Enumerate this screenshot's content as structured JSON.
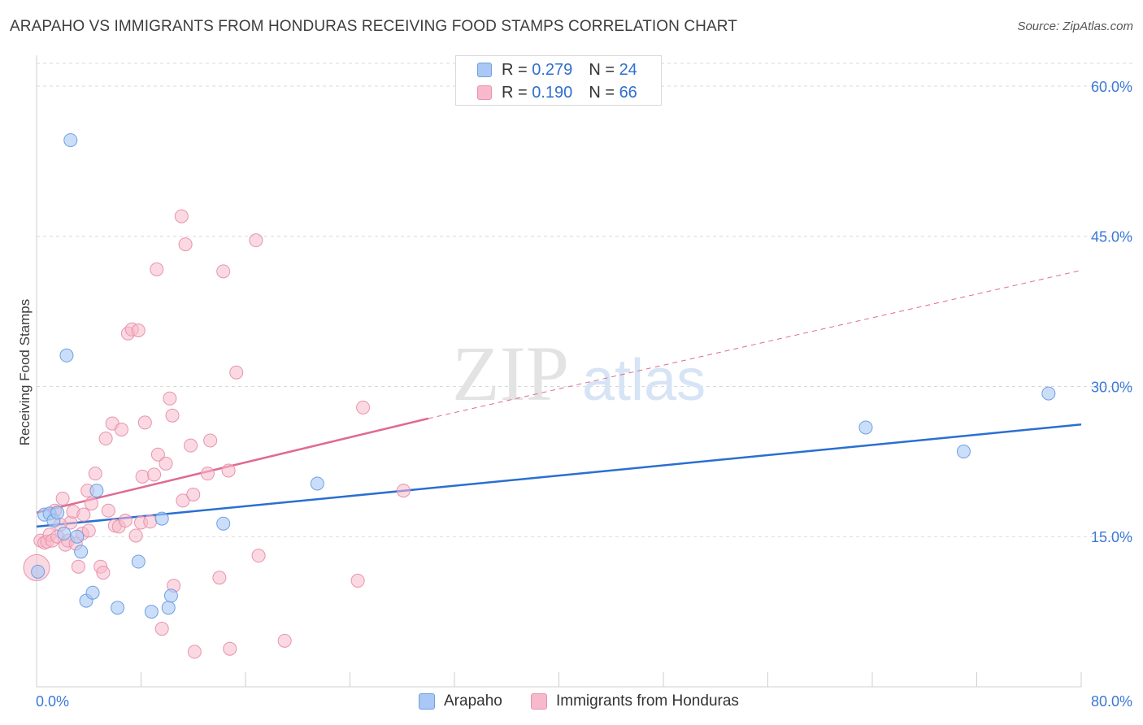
{
  "header": {
    "title": "ARAPAHO VS IMMIGRANTS FROM HONDURAS RECEIVING FOOD STAMPS CORRELATION CHART",
    "source": "Source: ZipAtlas.com"
  },
  "watermark": {
    "zip": "ZIP",
    "atlas": "atlas"
  },
  "stats_legend": {
    "rows": [
      {
        "r_label": "R =",
        "r_value": "0.279",
        "n_label": "N =",
        "n_value": "24",
        "color": "#a9c8f5"
      },
      {
        "r_label": "R =",
        "r_value": "0.190",
        "n_label": "N =",
        "n_value": "66",
        "color": "#f7b9cb"
      }
    ]
  },
  "colors": {
    "blue_fill": "#a9c8f5",
    "blue_stroke": "#6f9fe0",
    "blue_line": "#2a6fd0",
    "pink_fill": "#f7b9cb",
    "pink_stroke": "#e893ad",
    "pink_line": "#e06a93",
    "axis_label": "#3b78d6",
    "grid": "#d9d9d9"
  },
  "chart_data": {
    "type": "scatter",
    "title": "ARAPAHO VS IMMIGRANTS FROM HONDURAS RECEIVING FOOD STAMPS CORRELATION CHART",
    "xlabel": "",
    "ylabel": "Receiving Food Stamps",
    "xlim": [
      0,
      80
    ],
    "ylim": [
      0,
      60
    ],
    "x_tick_labels": [
      "0.0%",
      "80.0%"
    ],
    "y_ticks": [
      15,
      30,
      45,
      60
    ],
    "y_tick_labels": [
      "15.0%",
      "30.0%",
      "45.0%",
      "60.0%"
    ],
    "grid": true,
    "legend_position": "bottom",
    "series": [
      {
        "name": "Arapaho",
        "color": "blue",
        "points": [
          [
            0.1,
            11.5
          ],
          [
            0.6,
            17.2
          ],
          [
            1.0,
            17.3
          ],
          [
            1.3,
            16.6
          ],
          [
            1.6,
            17.4
          ],
          [
            2.1,
            15.3
          ],
          [
            2.3,
            33.1
          ],
          [
            2.6,
            54.6
          ],
          [
            3.1,
            15.0
          ],
          [
            3.4,
            13.5
          ],
          [
            3.8,
            8.6
          ],
          [
            4.3,
            9.4
          ],
          [
            4.6,
            19.6
          ],
          [
            6.2,
            7.9
          ],
          [
            7.8,
            12.5
          ],
          [
            8.8,
            7.5
          ],
          [
            9.6,
            16.8
          ],
          [
            10.1,
            7.9
          ],
          [
            10.3,
            9.1
          ],
          [
            14.3,
            16.3
          ],
          [
            21.5,
            20.3
          ],
          [
            63.5,
            25.9
          ],
          [
            71.0,
            23.5
          ],
          [
            77.5,
            29.3
          ]
        ],
        "trend": [
          [
            0,
            16.0
          ],
          [
            80,
            26.2
          ]
        ]
      },
      {
        "name": "Immigrants from Honduras",
        "color": "pink",
        "points": [
          [
            0.0,
            11.9
          ],
          [
            0.3,
            14.6
          ],
          [
            0.6,
            14.4
          ],
          [
            0.8,
            14.5
          ],
          [
            1.0,
            15.2
          ],
          [
            1.2,
            14.6
          ],
          [
            1.4,
            17.6
          ],
          [
            1.6,
            15.0
          ],
          [
            2.0,
            18.8
          ],
          [
            2.2,
            14.2
          ],
          [
            2.4,
            14.6
          ],
          [
            2.6,
            16.4
          ],
          [
            2.8,
            17.5
          ],
          [
            3.0,
            14.3
          ],
          [
            3.2,
            12.0
          ],
          [
            3.5,
            15.3
          ],
          [
            3.6,
            17.2
          ],
          [
            3.9,
            19.6
          ],
          [
            4.0,
            15.6
          ],
          [
            4.2,
            18.3
          ],
          [
            4.5,
            21.3
          ],
          [
            4.9,
            12.0
          ],
          [
            5.1,
            11.4
          ],
          [
            5.3,
            24.8
          ],
          [
            5.5,
            17.6
          ],
          [
            5.8,
            26.3
          ],
          [
            6.0,
            16.1
          ],
          [
            6.3,
            16.0
          ],
          [
            6.5,
            25.7
          ],
          [
            6.8,
            16.6
          ],
          [
            7.0,
            35.3
          ],
          [
            7.3,
            35.7
          ],
          [
            7.6,
            15.1
          ],
          [
            7.8,
            35.6
          ],
          [
            8.0,
            16.4
          ],
          [
            8.1,
            21.0
          ],
          [
            8.3,
            26.4
          ],
          [
            8.7,
            16.5
          ],
          [
            9.0,
            21.2
          ],
          [
            9.2,
            41.7
          ],
          [
            9.3,
            23.2
          ],
          [
            9.6,
            5.8
          ],
          [
            9.9,
            22.3
          ],
          [
            10.2,
            28.8
          ],
          [
            10.4,
            27.1
          ],
          [
            10.5,
            10.1
          ],
          [
            11.1,
            47.0
          ],
          [
            11.2,
            18.6
          ],
          [
            11.4,
            44.2
          ],
          [
            11.8,
            24.1
          ],
          [
            12.0,
            19.2
          ],
          [
            12.1,
            3.5
          ],
          [
            13.1,
            21.3
          ],
          [
            13.3,
            24.6
          ],
          [
            14.0,
            10.9
          ],
          [
            14.3,
            41.5
          ],
          [
            14.7,
            21.6
          ],
          [
            14.8,
            3.8
          ],
          [
            15.3,
            31.4
          ],
          [
            16.8,
            44.6
          ],
          [
            17.0,
            13.1
          ],
          [
            19.0,
            4.6
          ],
          [
            24.6,
            10.6
          ],
          [
            25.0,
            27.9
          ],
          [
            28.1,
            19.6
          ],
          [
            1.8,
            16.2
          ]
        ],
        "trend": [
          [
            0,
            17.4
          ],
          [
            30,
            26.8
          ]
        ],
        "trend_dashed": [
          [
            30,
            26.8
          ],
          [
            80,
            41.6
          ]
        ]
      }
    ]
  },
  "bottom_legend": {
    "items": [
      {
        "label": "Arapaho",
        "color": "#a9c8f5"
      },
      {
        "label": "Immigrants from Honduras",
        "color": "#f7b9cb"
      }
    ]
  }
}
